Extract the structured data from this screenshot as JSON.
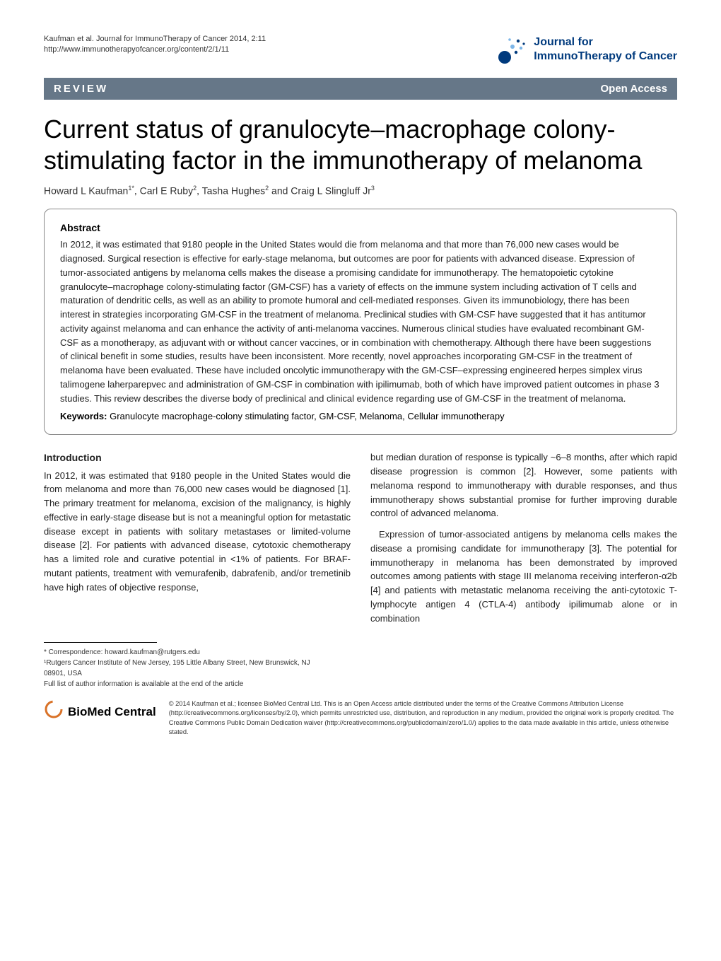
{
  "header": {
    "citation": "Kaufman et al. Journal for ImmunoTherapy of Cancer 2014, 2:11",
    "url": "http://www.immunotherapyofcancer.org/content/2/1/11",
    "journal_line1": "Journal for",
    "journal_line2": "ImmunoTherapy of Cancer",
    "logo_primary": "#003a7d",
    "logo_secondary": "#7db6e8"
  },
  "bar": {
    "left": "REVIEW",
    "right": "Open Access",
    "bg": "#667788"
  },
  "title": "Current status of granulocyte–macrophage colony-stimulating factor in the immunotherapy of melanoma",
  "authors_html": "Howard L Kaufman<sup>1*</sup>, Carl E Ruby<sup>2</sup>, Tasha Hughes<sup>2</sup> and Craig L Slingluff Jr<sup>3</sup>",
  "abstract": {
    "heading": "Abstract",
    "body": "In 2012, it was estimated that 9180 people in the United States would die from melanoma and that more than 76,000 new cases would be diagnosed. Surgical resection is effective for early-stage melanoma, but outcomes are poor for patients with advanced disease. Expression of tumor-associated antigens by melanoma cells makes the disease a promising candidate for immunotherapy. The hematopoietic cytokine granulocyte–macrophage colony-stimulating factor (GM-CSF) has a variety of effects on the immune system including activation of T cells and maturation of dendritic cells, as well as an ability to promote humoral and cell-mediated responses. Given its immunobiology, there has been interest in strategies incorporating GM-CSF in the treatment of melanoma. Preclinical studies with GM-CSF have suggested that it has antitumor activity against melanoma and can enhance the activity of anti-melanoma vaccines. Numerous clinical studies have evaluated recombinant GM-CSF as a monotherapy, as adjuvant with or without cancer vaccines, or in combination with chemotherapy. Although there have been suggestions of clinical benefit in some studies, results have been inconsistent. More recently, novel approaches incorporating GM-CSF in the treatment of melanoma have been evaluated. These have included oncolytic immunotherapy with the GM-CSF–expressing engineered herpes simplex virus talimogene laherparepvec and administration of GM-CSF in combination with ipilimumab, both of which have improved patient outcomes in phase 3 studies. This review describes the diverse body of preclinical and clinical evidence regarding use of GM-CSF in the treatment of melanoma.",
    "keywords_label": "Keywords:",
    "keywords": "Granulocyte macrophage-colony stimulating factor, GM-CSF, Melanoma, Cellular immunotherapy"
  },
  "intro": {
    "heading": "Introduction",
    "col1": "In 2012, it was estimated that 9180 people in the United States would die from melanoma and more than 76,000 new cases would be diagnosed [1]. The primary treatment for melanoma, excision of the malignancy, is highly effective in early-stage disease but is not a meaningful option for metastatic disease except in patients with solitary metastases or limited-volume disease [2]. For patients with advanced disease, cytotoxic chemotherapy has a limited role and curative potential in <1% of patients. For BRAF-mutant patients, treatment with vemurafenib, dabrafenib, and/or tremetinib have high rates of objective response,",
    "col2a": "but median duration of response is typically ~6–8 months, after which rapid disease progression is common [2]. However, some patients with melanoma respond to immunotherapy with durable responses, and thus immunotherapy shows substantial promise for further improving durable control of advanced melanoma.",
    "col2b": "Expression of tumor-associated antigens by melanoma cells makes the disease a promising candidate for immunotherapy [3]. The potential for immunotherapy in melanoma has been demonstrated by improved outcomes among patients with stage III melanoma receiving interferon-α2b [4] and patients with metastatic melanoma receiving the anti-cytotoxic T-lymphocyte antigen 4 (CTLA-4) antibody ipilimumab alone or in combination"
  },
  "correspondence": {
    "line1": "* Correspondence: howard.kaufman@rutgers.edu",
    "line2": "¹Rutgers Cancer Institute of New Jersey, 195 Little Albany Street, New Brunswick, NJ 08901, USA",
    "line3": "Full list of author information is available at the end of the article"
  },
  "footer": {
    "logo_text": "BioMed Central",
    "logo_color": "#d97228",
    "license": "© 2014 Kaufman et al.; licensee BioMed Central Ltd. This is an Open Access article distributed under the terms of the Creative Commons Attribution License (http://creativecommons.org/licenses/by/2.0), which permits unrestricted use, distribution, and reproduction in any medium, provided the original work is properly credited. The Creative Commons Public Domain Dedication waiver (http://creativecommons.org/publicdomain/zero/1.0/) applies to the data made available in this article, unless otherwise stated."
  }
}
